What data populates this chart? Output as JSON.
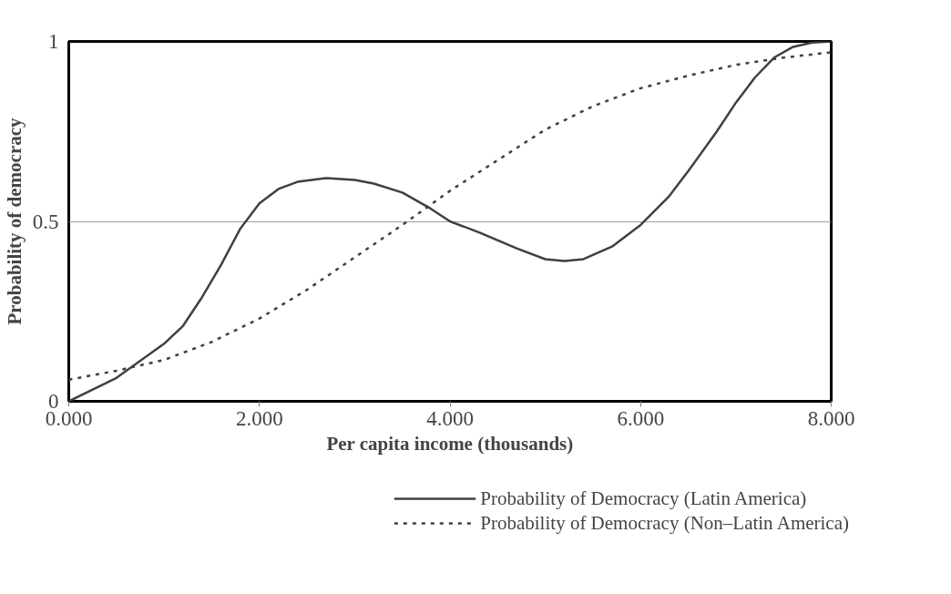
{
  "chart_data": {
    "type": "line",
    "xlabel": "Per capita income (thousands)",
    "ylabel": "Probability of democracy",
    "xlim": [
      0,
      8
    ],
    "ylim": [
      0,
      1
    ],
    "xticks": [
      {
        "value": 0,
        "label": "0.000"
      },
      {
        "value": 2,
        "label": "2.000"
      },
      {
        "value": 4,
        "label": "4.000"
      },
      {
        "value": 6,
        "label": "6.000"
      },
      {
        "value": 8,
        "label": "8.000"
      }
    ],
    "yticks": [
      0,
      0.5,
      1
    ],
    "grid": "y",
    "legend": "bottom",
    "series": [
      {
        "name": "Probability of Democracy (Latin America)",
        "color": "#404040",
        "line_style": "solid",
        "x": [
          0,
          0.5,
          1.0,
          1.2,
          1.4,
          1.6,
          1.8,
          2.0,
          2.2,
          2.4,
          2.7,
          3.0,
          3.2,
          3.5,
          3.8,
          4.0,
          4.3,
          4.7,
          5.0,
          5.2,
          5.4,
          5.7,
          6.0,
          6.3,
          6.5,
          6.8,
          7.0,
          7.2,
          7.4,
          7.6,
          7.8,
          8.0
        ],
        "values": [
          0,
          0.065,
          0.16,
          0.21,
          0.29,
          0.38,
          0.48,
          0.55,
          0.59,
          0.61,
          0.62,
          0.615,
          0.605,
          0.58,
          0.535,
          0.5,
          0.47,
          0.425,
          0.395,
          0.39,
          0.395,
          0.43,
          0.49,
          0.57,
          0.64,
          0.75,
          0.83,
          0.9,
          0.955,
          0.985,
          0.997,
          1.0
        ]
      },
      {
        "name": "Probability of Democracy (Non–Latin America)",
        "color": "#404040",
        "line_style": "dashed",
        "x": [
          0,
          0.5,
          1.0,
          1.5,
          2.0,
          2.5,
          3.0,
          3.5,
          4.0,
          4.5,
          5.0,
          5.5,
          6.0,
          6.5,
          7.0,
          7.5,
          8.0
        ],
        "values": [
          0.06,
          0.085,
          0.115,
          0.165,
          0.23,
          0.31,
          0.4,
          0.49,
          0.585,
          0.67,
          0.755,
          0.82,
          0.87,
          0.905,
          0.935,
          0.955,
          0.97
        ]
      }
    ]
  }
}
